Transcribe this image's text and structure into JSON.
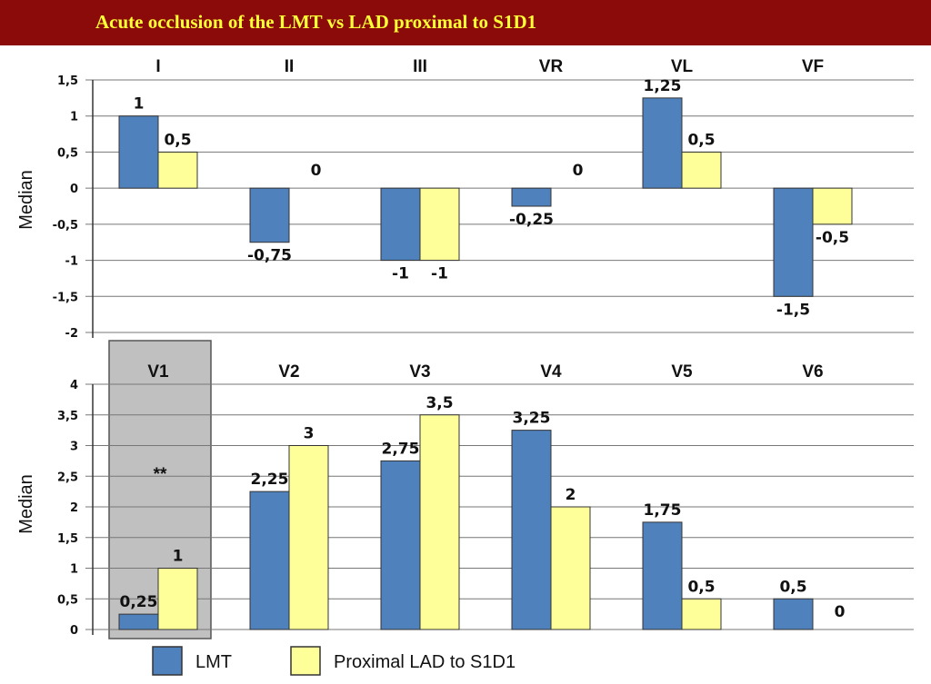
{
  "title": "Acute occlusion of the LMT vs  LAD proximal to S1D1",
  "colors": {
    "LMT": "#4f81bd",
    "Proximal LAD to S1D1": "#ffff99",
    "banner": "#8b0a0a",
    "title": "#ffff33",
    "highlight": "#c0c0c0"
  },
  "legend": [
    "LMT",
    "Proximal LAD to S1D1"
  ],
  "chart_data": [
    {
      "type": "bar",
      "categories": [
        "I",
        "II",
        "III",
        "VR",
        "VL",
        "VF"
      ],
      "ylabel": "Median",
      "ylim": [
        -2,
        1.5
      ],
      "yticks": [
        "1,5",
        "1",
        "0,5",
        "0",
        "-0,5",
        "-1",
        "-1,5",
        "-2"
      ],
      "grid": true,
      "series": [
        {
          "name": "LMT",
          "values": [
            1,
            -0.75,
            -1,
            -0.25,
            1.25,
            -1.5
          ],
          "labels": [
            "1",
            "-0,75",
            "-1",
            "-0,25",
            "1,25",
            "-1,5"
          ]
        },
        {
          "name": "Proximal LAD to S1D1",
          "values": [
            0.5,
            0,
            -1,
            0,
            0.5,
            -0.5
          ],
          "labels": [
            "0,5",
            "0",
            "-1",
            "0",
            "0,5",
            "-0,5"
          ]
        }
      ]
    },
    {
      "type": "bar",
      "categories": [
        "V1",
        "V2",
        "V3",
        "V4",
        "V5",
        "V6"
      ],
      "ylabel": "Median",
      "ylim": [
        0,
        4
      ],
      "yticks": [
        "4",
        "3,5",
        "3",
        "2,5",
        "2",
        "1,5",
        "1",
        "0,5",
        "0"
      ],
      "grid": true,
      "highlighted_category": "V1",
      "annotation": "**",
      "series": [
        {
          "name": "LMT",
          "values": [
            0.25,
            2.25,
            2.75,
            3.25,
            1.75,
            0.5
          ],
          "labels": [
            "0,25",
            "2,25",
            "2,75",
            "3,25",
            "1,75",
            "0,5"
          ]
        },
        {
          "name": "Proximal LAD to S1D1",
          "values": [
            1,
            3,
            3.5,
            2,
            0.5,
            0
          ],
          "labels": [
            "1",
            "3",
            "3,5",
            "2",
            "0,5",
            "0"
          ]
        }
      ]
    }
  ]
}
